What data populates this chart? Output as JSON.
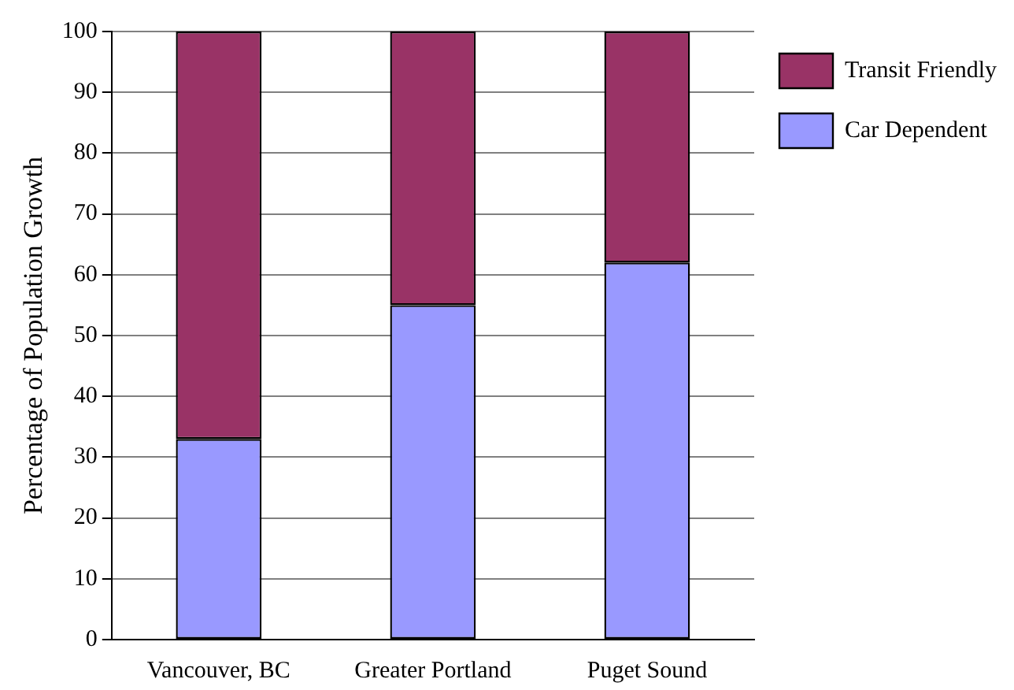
{
  "chart_data": {
    "type": "bar",
    "ylabel": "Percentage of Population Growth",
    "categories": [
      "Vancouver, BC",
      "Greater Portland",
      "Puget Sound"
    ],
    "series": [
      {
        "name": "Car Dependent",
        "color": "#9999ff",
        "values": [
          33,
          55,
          62
        ]
      },
      {
        "name": "Transit Friendly",
        "color": "#993366",
        "values": [
          67,
          45,
          38
        ]
      }
    ],
    "stacked": true,
    "ylim": [
      0,
      100
    ],
    "yticks": [
      0,
      10,
      20,
      30,
      40,
      50,
      60,
      70,
      80,
      90,
      100
    ],
    "grid": "y",
    "legend": "top right"
  }
}
